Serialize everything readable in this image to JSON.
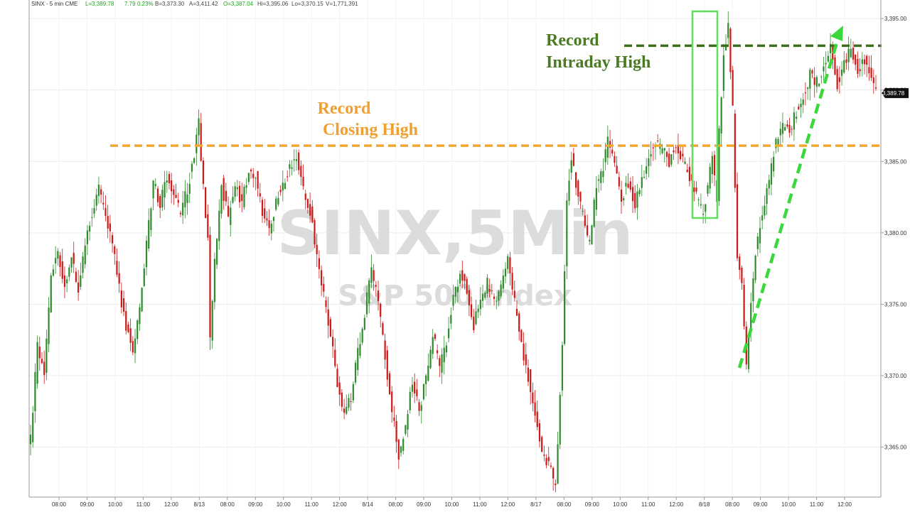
{
  "header": {
    "symbol": "SINX - 5 min CME",
    "last_label": "L=3,389.78",
    "change": "7.79",
    "change_pct": "0.23%",
    "b": "B=3,373.30",
    "a": "A=3,411.42",
    "open": "O=3,387.04",
    "high": "Hi=3,395.06",
    "low": "Lo=3,370.15",
    "volume": "V=1,771,391"
  },
  "watermark": {
    "main": "SINX,5Min",
    "sub": "S&P 500 Index"
  },
  "annotations": {
    "closing_high": {
      "line1": "Record",
      "line2": "Closing High"
    },
    "intraday_high": {
      "line1": "Record",
      "line2": "Intraday High"
    }
  },
  "colors": {
    "up": "#2e8b2e",
    "down": "#d01818",
    "closing_line": "#f0a830",
    "closing_text": "#f0a030",
    "intraday_line": "#3d6e1e",
    "intraday_text": "#4a7a22",
    "highlight_box": "#5ee05e",
    "arrow": "#3ad83a"
  },
  "last_price_label": "3,389.78",
  "chart_data": {
    "type": "candlestick",
    "title": "",
    "x_labels": [
      "08:00",
      "09:00",
      "10:00",
      "11:00",
      "12:00",
      "8/13",
      "08:00",
      "09:00",
      "10:00",
      "11:00",
      "12:00",
      "8/14",
      "08:00",
      "09:00",
      "10:00",
      "11:00",
      "12:00",
      "8/17",
      "08:00",
      "09:00",
      "10:00",
      "11:00",
      "12:00",
      "8/18",
      "08:00",
      "09:00",
      "10:00",
      "11:00",
      "12:00"
    ],
    "y_ticks": [
      "3,395.00",
      "3,390.00",
      "3,385.00",
      "3,380.00",
      "3,375.00",
      "3,370.00",
      "3,365.00"
    ],
    "y_tick_values": [
      3395,
      3390,
      3385,
      3380,
      3375,
      3370,
      3365
    ],
    "ylim": [
      3361.5,
      3396.3
    ],
    "reference_lines": [
      {
        "name": "Record Closing High",
        "value": 3386.1
      },
      {
        "name": "Record Intraday High",
        "value": 3393.1
      }
    ],
    "last_price": 3389.78,
    "path": [
      [
        0,
        3365.6
      ],
      [
        3,
        3372.0
      ],
      [
        6,
        3370.2
      ],
      [
        9,
        3377.0
      ],
      [
        12,
        3378.5
      ],
      [
        15,
        3376.3
      ],
      [
        18,
        3378.3
      ],
      [
        21,
        3375.8
      ],
      [
        24,
        3379.0
      ],
      [
        27,
        3381.5
      ],
      [
        30,
        3383.0
      ],
      [
        33,
        3381.0
      ],
      [
        36,
        3379.3
      ],
      [
        39,
        3376.0
      ],
      [
        42,
        3373.5
      ],
      [
        45,
        3372.0
      ],
      [
        48,
        3374.5
      ],
      [
        51,
        3379.0
      ],
      [
        54,
        3383.5
      ],
      [
        57,
        3382.0
      ],
      [
        60,
        3383.8
      ],
      [
        63,
        3382.5
      ],
      [
        66,
        3381.5
      ],
      [
        69,
        3383.0
      ],
      [
        72,
        3385.5
      ],
      [
        74,
        3387.6
      ],
      [
        76,
        3383.0
      ],
      [
        78,
        3379.5
      ],
      [
        79,
        3372.6
      ],
      [
        81,
        3378.0
      ],
      [
        84,
        3383.5
      ],
      [
        87,
        3381.0
      ],
      [
        90,
        3383.5
      ],
      [
        93,
        3382.0
      ],
      [
        96,
        3384.5
      ],
      [
        99,
        3384.0
      ],
      [
        102,
        3381.5
      ],
      [
        105,
        3380.2
      ],
      [
        108,
        3382.2
      ],
      [
        111,
        3383.5
      ],
      [
        114,
        3384.5
      ],
      [
        117,
        3385.6
      ],
      [
        120,
        3383.0
      ],
      [
        123,
        3381.5
      ],
      [
        126,
        3378.5
      ],
      [
        129,
        3375.5
      ],
      [
        132,
        3373.0
      ],
      [
        135,
        3369.5
      ],
      [
        138,
        3367.0
      ],
      [
        141,
        3368.5
      ],
      [
        144,
        3371.5
      ],
      [
        147,
        3374.5
      ],
      [
        150,
        3377.5
      ],
      [
        153,
        3375.0
      ],
      [
        156,
        3371.5
      ],
      [
        159,
        3367.5
      ],
      [
        162,
        3364.3
      ],
      [
        165,
        3366.5
      ],
      [
        168,
        3369.5
      ],
      [
        171,
        3367.5
      ],
      [
        174,
        3369.8
      ],
      [
        177,
        3373.0
      ],
      [
        180,
        3370.5
      ],
      [
        183,
        3372.5
      ],
      [
        186,
        3375.5
      ],
      [
        189,
        3377.0
      ],
      [
        192,
        3376.0
      ],
      [
        195,
        3373.5
      ],
      [
        198,
        3375.5
      ],
      [
        201,
        3376.5
      ],
      [
        204,
        3375.2
      ],
      [
        207,
        3376.0
      ],
      [
        210,
        3378.5
      ],
      [
        213,
        3375.0
      ],
      [
        216,
        3372.0
      ],
      [
        219,
        3370.0
      ],
      [
        222,
        3367.5
      ],
      [
        225,
        3364.5
      ],
      [
        228,
        3363.8
      ],
      [
        231,
        3362.0
      ],
      [
        234,
        3372.5
      ],
      [
        236,
        3382.3
      ],
      [
        238,
        3385.5
      ],
      [
        241,
        3382.5
      ],
      [
        244,
        3380.5
      ],
      [
        246,
        3379.2
      ],
      [
        249,
        3383.5
      ],
      [
        252,
        3384.5
      ],
      [
        254,
        3386.6
      ],
      [
        257,
        3385.0
      ],
      [
        260,
        3382.5
      ],
      [
        263,
        3383.5
      ],
      [
        266,
        3382.0
      ],
      [
        269,
        3383.5
      ],
      [
        272,
        3385.5
      ],
      [
        275,
        3386.3
      ],
      [
        278,
        3385.8
      ],
      [
        281,
        3385.0
      ],
      [
        284,
        3386.0
      ],
      [
        287,
        3385.0
      ],
      [
        290,
        3384.0
      ],
      [
        293,
        3382.5
      ],
      [
        296,
        3381.2
      ],
      [
        298,
        3383.5
      ],
      [
        300,
        3385.0
      ],
      [
        302,
        3382.5
      ],
      [
        303,
        3387.0
      ],
      [
        305,
        3392.5
      ],
      [
        307,
        3394.5
      ],
      [
        309,
        3388.5
      ],
      [
        311,
        3378.5
      ],
      [
        313,
        3376.8
      ],
      [
        315,
        3370.6
      ],
      [
        317,
        3375.5
      ],
      [
        319,
        3378.5
      ],
      [
        322,
        3381.5
      ],
      [
        325,
        3383.8
      ],
      [
        328,
        3386.5
      ],
      [
        331,
        3387.5
      ],
      [
        334,
        3387.2
      ],
      [
        337,
        3388.5
      ],
      [
        340,
        3389.5
      ],
      [
        343,
        3391.0
      ],
      [
        346,
        3390.5
      ],
      [
        349,
        3391.5
      ],
      [
        352,
        3393.0
      ],
      [
        355,
        3390.5
      ],
      [
        358,
        3391.8
      ],
      [
        361,
        3393.2
      ],
      [
        364,
        3391.3
      ],
      [
        367,
        3392.0
      ],
      [
        370,
        3390.9
      ],
      [
        372,
        3389.78
      ]
    ]
  }
}
